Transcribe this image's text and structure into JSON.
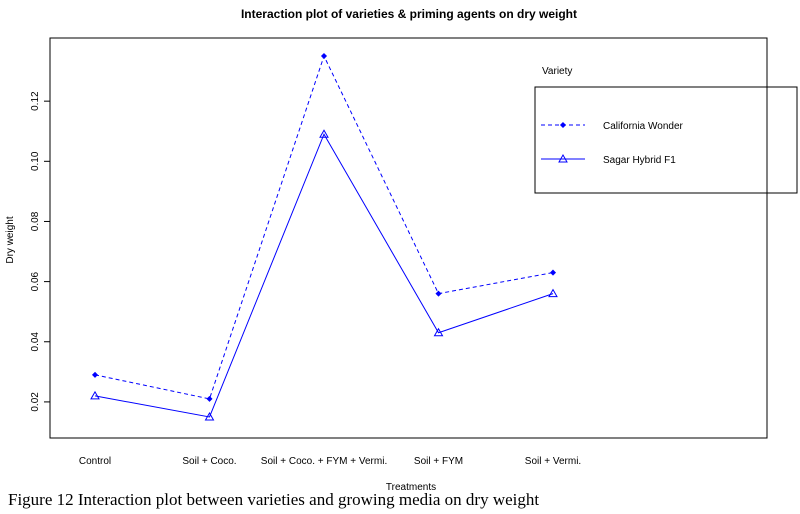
{
  "chart_data": {
    "type": "line",
    "title": "Interaction plot of varieties & priming agents on dry weight",
    "xlabel": "Treatments",
    "ylabel": "Dry weight",
    "categories": [
      "Control",
      "Soil + Coco.",
      "Soil + Coco. + FYM + Vermi.",
      "Soil + FYM",
      "Soil + Vermi."
    ],
    "ylim": [
      0.008,
      0.141
    ],
    "yticks": [
      "0.02",
      "0.04",
      "0.06",
      "0.08",
      "0.10",
      "0.12"
    ],
    "legend_title": "Variety",
    "legend_position": "top-right",
    "grid": false,
    "series": [
      {
        "name": "California Wonder",
        "values": [
          0.029,
          0.021,
          0.135,
          0.056,
          0.063
        ],
        "line": "dashed",
        "marker": "filled-diamond",
        "color": "#0000ff"
      },
      {
        "name": "Sagar Hybrid F1",
        "values": [
          0.022,
          0.015,
          0.109,
          0.043,
          0.056
        ],
        "line": "solid",
        "marker": "open-triangle",
        "color": "#0000ff"
      }
    ]
  },
  "caption": "Figure 12 Interaction plot between varieties and growing media on dry weight"
}
